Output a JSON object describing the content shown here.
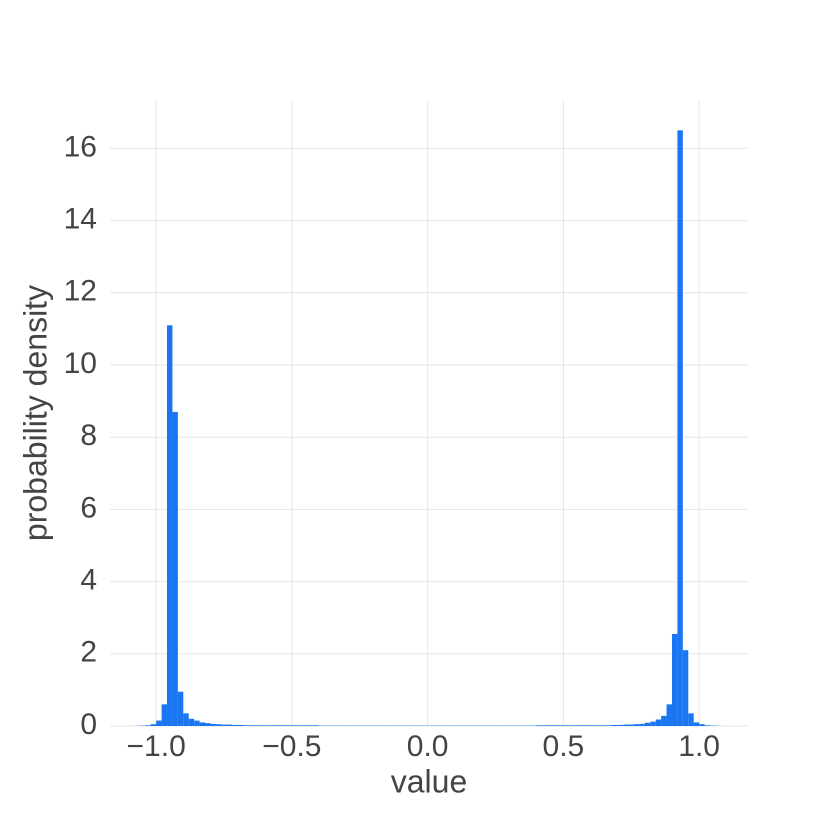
{
  "chart_data": {
    "type": "histogram",
    "xlabel": "value",
    "ylabel": "probability density",
    "color": "#1a76f2",
    "grid": true,
    "bins": [
      -1.08,
      -1.06,
      -1.04,
      -1.02,
      -1,
      -0.98,
      -0.96,
      -0.94,
      -0.92,
      -0.9,
      -0.88,
      -0.86,
      -0.84,
      -0.82,
      -0.8,
      -0.78,
      -0.76,
      -0.74,
      -0.72,
      -0.7,
      -0.68,
      -0.66,
      -0.64,
      -0.62,
      -0.6,
      -0.58,
      -0.56,
      -0.54,
      -0.52,
      -0.5,
      -0.48,
      -0.46,
      -0.44,
      -0.42,
      -0.4,
      -0.38,
      -0.36,
      -0.34,
      -0.32,
      -0.3,
      -0.28,
      -0.26,
      -0.24,
      -0.22,
      -0.2,
      -0.18,
      -0.16,
      -0.14,
      -0.12,
      -0.1,
      -0.08,
      -0.06,
      -0.04,
      -0.02,
      0,
      0.02,
      0.04,
      0.06,
      0.08,
      0.1,
      0.12,
      0.14,
      0.16,
      0.18,
      0.2,
      0.22,
      0.24,
      0.26,
      0.28,
      0.3,
      0.32,
      0.34,
      0.36,
      0.38,
      0.4,
      0.42,
      0.44,
      0.46,
      0.48,
      0.5,
      0.52,
      0.54,
      0.56,
      0.58,
      0.6,
      0.62,
      0.64,
      0.66,
      0.68,
      0.7,
      0.72,
      0.74,
      0.76,
      0.78,
      0.8,
      0.82,
      0.84,
      0.86,
      0.88,
      0.9,
      0.92,
      0.94,
      0.96,
      0.98,
      1,
      1.02,
      1.04,
      1.06,
      1.08
    ],
    "values": [
      0.005,
      0.01,
      0.02,
      0.05,
      0.15,
      0.6,
      11.1,
      8.7,
      0.95,
      0.35,
      0.2,
      0.15,
      0.1,
      0.08,
      0.06,
      0.05,
      0.04,
      0.04,
      0.03,
      0.03,
      0.02,
      0.02,
      0.02,
      0.02,
      0.02,
      0.02,
      0.02,
      0.02,
      0.02,
      0.02,
      0.02,
      0.02,
      0.02,
      0.02,
      0.01,
      0.01,
      0.01,
      0.01,
      0.01,
      0.01,
      0.01,
      0.01,
      0.01,
      0.01,
      0.01,
      0.01,
      0.01,
      0.01,
      0.01,
      0.01,
      0.01,
      0.01,
      0.01,
      0.01,
      0.01,
      0.01,
      0.01,
      0.01,
      0.01,
      0.01,
      0.01,
      0.01,
      0.01,
      0.01,
      0.01,
      0.01,
      0.01,
      0.01,
      0.01,
      0.01,
      0.01,
      0.01,
      0.01,
      0.01,
      0.02,
      0.02,
      0.02,
      0.02,
      0.02,
      0.02,
      0.02,
      0.02,
      0.02,
      0.02,
      0.02,
      0.02,
      0.02,
      0.02,
      0.03,
      0.03,
      0.04,
      0.04,
      0.05,
      0.06,
      0.09,
      0.12,
      0.18,
      0.28,
      0.6,
      2.55,
      16.5,
      2.1,
      0.35,
      0.1,
      0.05,
      0.02,
      0.01,
      0.005
    ],
    "xlim": [
      -1.17,
      1.18
    ],
    "ylim": [
      0,
      17.34
    ],
    "xticks": [
      {
        "value": -1,
        "label": "−1.0"
      },
      {
        "value": -0.5,
        "label": "−0.5"
      },
      {
        "value": 0,
        "label": "0.0"
      },
      {
        "value": 0.5,
        "label": "0.5"
      },
      {
        "value": 1,
        "label": "1.0"
      }
    ],
    "yticks": [
      0,
      2,
      4,
      6,
      8,
      10,
      12,
      14,
      16
    ]
  }
}
